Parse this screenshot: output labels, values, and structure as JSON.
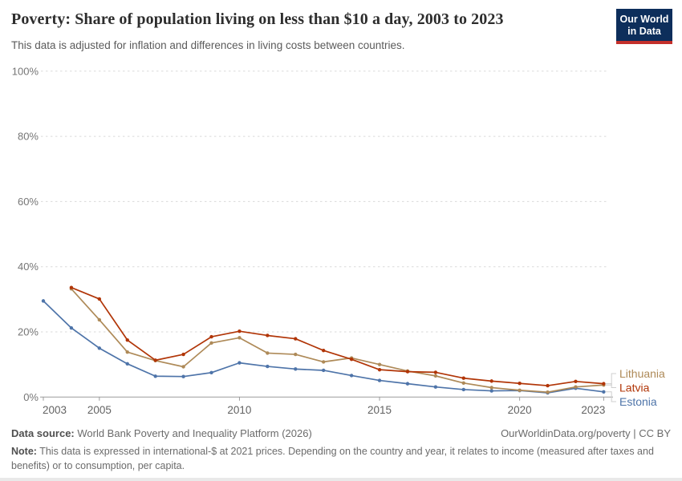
{
  "header": {
    "logo": {
      "line1": "Our World",
      "line2": "in Data",
      "bg": "#0d2e5b",
      "accent": "#c4302b"
    }
  },
  "chart_data": {
    "type": "line",
    "title": "Poverty: Share of population living on less than $10 a day, 2003 to 2023",
    "subtitle": "This data is adjusted for inflation and differences in living costs between countries.",
    "xlabel": "",
    "ylabel": "",
    "ylim": [
      0,
      100
    ],
    "yticks": [
      0,
      20,
      40,
      60,
      80,
      100
    ],
    "ytick_format": "%",
    "xticks": [
      2003,
      2005,
      2010,
      2015,
      2020,
      2023
    ],
    "grid": "dashed-horizontal",
    "legend_position": "right-end-labels",
    "x": [
      2003,
      2004,
      2005,
      2006,
      2007,
      2008,
      2009,
      2010,
      2011,
      2012,
      2013,
      2014,
      2015,
      2016,
      2017,
      2018,
      2019,
      2020,
      2021,
      2022,
      2023
    ],
    "series": [
      {
        "name": "Lithuania",
        "color": "#ae8a58",
        "values": [
          null,
          33.2,
          23.7,
          13.8,
          11.2,
          9.3,
          16.6,
          18.2,
          13.5,
          13.1,
          10.8,
          12.0,
          10.0,
          8.0,
          6.5,
          4.3,
          2.9,
          2.1,
          1.5,
          3.1,
          3.7
        ]
      },
      {
        "name": "Latvia",
        "color": "#b13507",
        "values": [
          null,
          33.6,
          30.1,
          17.5,
          11.3,
          13.1,
          18.5,
          20.2,
          18.9,
          17.9,
          14.3,
          11.6,
          8.4,
          7.8,
          7.6,
          5.8,
          4.9,
          4.2,
          3.5,
          4.8,
          4.1
        ]
      },
      {
        "name": "Estonia",
        "color": "#4e74a9",
        "values": [
          29.5,
          21.2,
          15.0,
          10.2,
          6.4,
          6.3,
          7.5,
          10.5,
          9.4,
          8.6,
          8.2,
          6.6,
          5.1,
          4.1,
          3.1,
          2.3,
          1.9,
          2.0,
          1.3,
          2.7,
          1.6
        ]
      }
    ]
  },
  "footer": {
    "data_source_label": "Data source:",
    "data_source_value": " World Bank Poverty and Inequality Platform (2026)",
    "credit": "OurWorldinData.org/poverty | CC BY",
    "note_label": "Note:",
    "note_value": " This data is expressed in international-$ at 2021 prices. Depending on the country and year, it relates to income (measured after taxes and benefits) or to consumption, per capita."
  }
}
